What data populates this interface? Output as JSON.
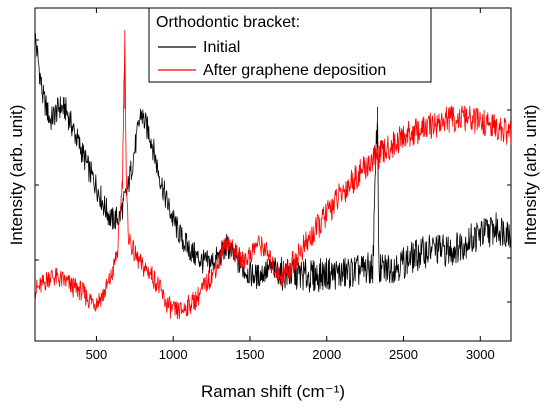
{
  "chart_data": {
    "type": "line",
    "xlabel": "Raman shift (cm⁻¹)",
    "ylabel_left": "Intensity (arb. unit)",
    "ylabel_right": "Intensity (arb. unit)",
    "xlim": [
      100,
      3200
    ],
    "xticks": [
      500,
      1000,
      1500,
      2000,
      2500,
      3000
    ],
    "xtick_labels": [
      "500",
      "1000",
      "1500",
      "2000",
      "2500",
      "3000"
    ],
    "y_tick_labels_shown": false,
    "grid": false,
    "legend": {
      "title": "Orthodontic bracket:",
      "placement": "top-center",
      "entries": [
        "Initial",
        "After graphene deposition"
      ]
    },
    "series": [
      {
        "name": "Initial",
        "color": "#000000",
        "axis": "right",
        "y_range": [
          0,
          1
        ],
        "points": [
          [
            100,
            0.95
          ],
          [
            150,
            0.74
          ],
          [
            200,
            0.65
          ],
          [
            260,
            0.7
          ],
          [
            300,
            0.69
          ],
          [
            350,
            0.62
          ],
          [
            400,
            0.55
          ],
          [
            450,
            0.48
          ],
          [
            500,
            0.42
          ],
          [
            550,
            0.35
          ],
          [
            600,
            0.3
          ],
          [
            650,
            0.31
          ],
          [
            700,
            0.4
          ],
          [
            750,
            0.55
          ],
          [
            790,
            0.68
          ],
          [
            810,
            0.65
          ],
          [
            850,
            0.6
          ],
          [
            900,
            0.48
          ],
          [
            950,
            0.38
          ],
          [
            1000,
            0.3
          ],
          [
            1050,
            0.24
          ],
          [
            1100,
            0.2
          ],
          [
            1150,
            0.17
          ],
          [
            1200,
            0.15
          ],
          [
            1250,
            0.15
          ],
          [
            1300,
            0.17
          ],
          [
            1350,
            0.21
          ],
          [
            1400,
            0.17
          ],
          [
            1450,
            0.13
          ],
          [
            1500,
            0.11
          ],
          [
            1550,
            0.1
          ],
          [
            1600,
            0.12
          ],
          [
            1650,
            0.13
          ],
          [
            1700,
            0.11
          ],
          [
            1800,
            0.11
          ],
          [
            1900,
            0.1
          ],
          [
            2000,
            0.11
          ],
          [
            2100,
            0.11
          ],
          [
            2200,
            0.12
          ],
          [
            2300,
            0.13
          ],
          [
            2330,
            0.7
          ],
          [
            2340,
            0.12
          ],
          [
            2400,
            0.13
          ],
          [
            2500,
            0.15
          ],
          [
            2600,
            0.18
          ],
          [
            2700,
            0.2
          ],
          [
            2800,
            0.19
          ],
          [
            2900,
            0.22
          ],
          [
            3000,
            0.25
          ],
          [
            3100,
            0.27
          ],
          [
            3200,
            0.26
          ]
        ]
      },
      {
        "name": "After graphene deposition",
        "color": "#ff0000",
        "axis": "left",
        "y_range": [
          0,
          1
        ],
        "points": [
          [
            100,
            0.12
          ],
          [
            150,
            0.14
          ],
          [
            200,
            0.17
          ],
          [
            250,
            0.16
          ],
          [
            300,
            0.15
          ],
          [
            350,
            0.13
          ],
          [
            400,
            0.12
          ],
          [
            450,
            0.09
          ],
          [
            500,
            0.08
          ],
          [
            550,
            0.11
          ],
          [
            600,
            0.17
          ],
          [
            640,
            0.26
          ],
          [
            670,
            0.5
          ],
          [
            685,
            1.0
          ],
          [
            695,
            0.45
          ],
          [
            710,
            0.3
          ],
          [
            750,
            0.24
          ],
          [
            800,
            0.2
          ],
          [
            850,
            0.18
          ],
          [
            900,
            0.14
          ],
          [
            950,
            0.08
          ],
          [
            1000,
            0.05
          ],
          [
            1050,
            0.05
          ],
          [
            1100,
            0.07
          ],
          [
            1150,
            0.09
          ],
          [
            1200,
            0.13
          ],
          [
            1250,
            0.17
          ],
          [
            1300,
            0.22
          ],
          [
            1350,
            0.29
          ],
          [
            1400,
            0.25
          ],
          [
            1450,
            0.22
          ],
          [
            1500,
            0.24
          ],
          [
            1550,
            0.28
          ],
          [
            1600,
            0.26
          ],
          [
            1650,
            0.2
          ],
          [
            1700,
            0.17
          ],
          [
            1750,
            0.19
          ],
          [
            1800,
            0.23
          ],
          [
            1900,
            0.3
          ],
          [
            2000,
            0.38
          ],
          [
            2100,
            0.45
          ],
          [
            2200,
            0.51
          ],
          [
            2300,
            0.56
          ],
          [
            2400,
            0.6
          ],
          [
            2500,
            0.64
          ],
          [
            2600,
            0.66
          ],
          [
            2700,
            0.68
          ],
          [
            2800,
            0.7
          ],
          [
            2900,
            0.7
          ],
          [
            3000,
            0.69
          ],
          [
            3100,
            0.67
          ],
          [
            3200,
            0.65
          ]
        ]
      }
    ]
  }
}
